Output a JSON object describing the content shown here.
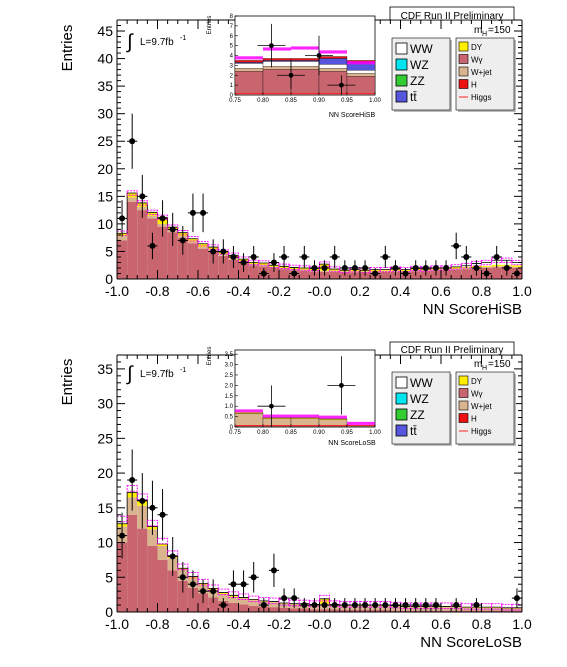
{
  "figure": {
    "experiment_label": "CDF Run II Preliminary",
    "mass_label": "m",
    "mass_subscript": "H",
    "mass_value": "=150",
    "luminosity_label": "L=9.7fb",
    "luminosity_exponent": "-1",
    "integral_symbol": "∫"
  },
  "legend": {
    "entries": [
      {
        "label": "WW",
        "color": "#ffffff",
        "style": "box"
      },
      {
        "label": "WZ",
        "color": "#00e5ee",
        "style": "box"
      },
      {
        "label": "ZZ",
        "color": "#33cc33",
        "style": "box"
      },
      {
        "label": "tt̄",
        "color": "#5555dd",
        "style": "box"
      },
      {
        "label": "DY",
        "color": "#ffee00",
        "style": "box"
      },
      {
        "label": "Wγ",
        "color": "#c8656e",
        "style": "box"
      },
      {
        "label": "W+jet",
        "color": "#d9b48f",
        "style": "box"
      },
      {
        "label": "H",
        "color": "#ee1111",
        "style": "box"
      },
      {
        "label": "Higgs",
        "color": "#ff2222",
        "style": "line"
      }
    ]
  },
  "colors": {
    "wgamma": "#c8656e",
    "wjet": "#d9b48f",
    "dy": "#ffee00",
    "ww": "#ffffff",
    "wz": "#00e5ee",
    "zz": "#33cc33",
    "ttbar": "#5555dd",
    "h": "#ee1111",
    "higgs_line": "#ff2222",
    "uncertainty": "#ff00ff",
    "data": "#000000"
  },
  "chart_data": [
    {
      "type": "histogram",
      "xlabel": "NN ScoreHiSB",
      "ylabel": "Entries",
      "xlim": [
        -1.0,
        1.0
      ],
      "ylim": [
        0,
        47
      ],
      "xticks": [
        -1.0,
        -0.8,
        -0.6,
        -0.4,
        -0.2,
        -0.0,
        0.2,
        0.4,
        0.6,
        0.8,
        1.0
      ],
      "xtick_labels": [
        "-1.0",
        "-0.8",
        "-0.6",
        "-0.4",
        "-0.2",
        "-0.0",
        "0.2",
        "0.4",
        "0.6",
        "0.8",
        "1.0"
      ],
      "yticks": [
        0,
        5,
        10,
        15,
        20,
        25,
        30,
        35,
        40,
        45
      ],
      "bin_width": 0.05,
      "bin_edges_start": -1.0,
      "stack": {
        "wgamma": [
          7,
          14,
          12.5,
          11,
          9.5,
          8.5,
          7.5,
          6.5,
          5.5,
          5,
          4.2,
          3.5,
          3,
          2.5,
          2.3,
          2,
          1.8,
          1.6,
          1.5,
          1.4,
          1.3,
          1.3,
          1.2,
          1.2,
          1.2,
          1.2,
          1.3,
          1.3,
          1.3,
          1.4,
          1.4,
          1.5,
          1.6,
          1.7,
          1.8,
          1.9,
          2.0,
          2.1,
          2.2,
          2.0
        ],
        "wjet": [
          0.8,
          0.8,
          0.6,
          0.5,
          0.5,
          0.4,
          0.3,
          0.3,
          0.3,
          0.3,
          0.3,
          0.3,
          0.2,
          0.2,
          0.2,
          0.2,
          0.2,
          0.2,
          0.2,
          0.2,
          0.2,
          0.2,
          0.2,
          0.2,
          0.2,
          0.2,
          0.2,
          0.2,
          0.2,
          0.2,
          0.2,
          0.2,
          0.2,
          0.2,
          0.2,
          0.2,
          0.2,
          0.2,
          0.2,
          0.2
        ],
        "dy": [
          0.5,
          0.8,
          0.7,
          0.6,
          1.2,
          0.5,
          0.6,
          0.5,
          0.6,
          0.5,
          0.4,
          0.5,
          0.4,
          0.3,
          0.4,
          0.3,
          0.3,
          0.3,
          0.3,
          0.3,
          1.2,
          0.3,
          0.2,
          0.3,
          0.2,
          0.3,
          0.2,
          0.3,
          0.2,
          0.3,
          0.2,
          0.3,
          0.2,
          0.3,
          0.2,
          0.3,
          0.2,
          0.3,
          0.2,
          0.3
        ],
        "ww": [
          0,
          0,
          0,
          0,
          0,
          0,
          0,
          0,
          0,
          0,
          0,
          0,
          0,
          0,
          0,
          0,
          0,
          0,
          0,
          0,
          0,
          0,
          0,
          0,
          0,
          0,
          0,
          0,
          0,
          0,
          0,
          0,
          0,
          0,
          0.2,
          0.4,
          0.6,
          0.8,
          0.8,
          0.5
        ]
      },
      "uncertainty_total": [
        8.3,
        15.6,
        13.8,
        12.1,
        11.2,
        9.4,
        8.4,
        7.3,
        6.4,
        5.8,
        4.9,
        4.3,
        3.6,
        3.0,
        2.9,
        2.5,
        2.3,
        2.1,
        2.0,
        1.9,
        2.7,
        1.8,
        1.6,
        1.7,
        1.6,
        1.7,
        1.7,
        1.8,
        1.7,
        1.9,
        1.8,
        2.0,
        2.0,
        2.2,
        2.4,
        2.8,
        3.0,
        3.4,
        3.4,
        3.0
      ],
      "data_points": [
        {
          "x": -0.975,
          "y": 11,
          "err": 3.3
        },
        {
          "x": -0.925,
          "y": 25,
          "err": 5.0
        },
        {
          "x": -0.875,
          "y": 15,
          "err": 3.9
        },
        {
          "x": -0.825,
          "y": 6,
          "err": 2.4
        },
        {
          "x": -0.775,
          "y": 11,
          "err": 3.3
        },
        {
          "x": -0.725,
          "y": 9,
          "err": 3.0
        },
        {
          "x": -0.675,
          "y": 7,
          "err": 2.6
        },
        {
          "x": -0.625,
          "y": 12,
          "err": 3.5
        },
        {
          "x": -0.575,
          "y": 12,
          "err": 3.5
        },
        {
          "x": -0.525,
          "y": 5,
          "err": 2.2
        },
        {
          "x": -0.475,
          "y": 5,
          "err": 2.2
        },
        {
          "x": -0.425,
          "y": 4,
          "err": 2.0
        },
        {
          "x": -0.375,
          "y": 3,
          "err": 1.7
        },
        {
          "x": -0.325,
          "y": 4,
          "err": 2.0
        },
        {
          "x": -0.275,
          "y": 1,
          "err": 1.0
        },
        {
          "x": -0.225,
          "y": 3,
          "err": 1.7
        },
        {
          "x": -0.175,
          "y": 4,
          "err": 2.0
        },
        {
          "x": -0.125,
          "y": 1,
          "err": 1.0
        },
        {
          "x": -0.075,
          "y": 4,
          "err": 2.0
        },
        {
          "x": -0.025,
          "y": 2,
          "err": 1.4
        },
        {
          "x": 0.025,
          "y": 2,
          "err": 1.4
        },
        {
          "x": 0.075,
          "y": 4,
          "err": 2.0
        },
        {
          "x": 0.125,
          "y": 2,
          "err": 1.4
        },
        {
          "x": 0.175,
          "y": 2,
          "err": 1.4
        },
        {
          "x": 0.225,
          "y": 2,
          "err": 1.4
        },
        {
          "x": 0.275,
          "y": 1,
          "err": 1.0
        },
        {
          "x": 0.325,
          "y": 4,
          "err": 2.0
        },
        {
          "x": 0.375,
          "y": 2,
          "err": 1.4
        },
        {
          "x": 0.425,
          "y": 1,
          "err": 1.0
        },
        {
          "x": 0.475,
          "y": 2,
          "err": 1.4
        },
        {
          "x": 0.525,
          "y": 2,
          "err": 1.4
        },
        {
          "x": 0.575,
          "y": 2,
          "err": 1.4
        },
        {
          "x": 0.625,
          "y": 2,
          "err": 1.4
        },
        {
          "x": 0.675,
          "y": 6,
          "err": 2.4
        },
        {
          "x": 0.725,
          "y": 4,
          "err": 2.0
        },
        {
          "x": 0.775,
          "y": 2,
          "err": 1.4
        },
        {
          "x": 0.825,
          "y": 1,
          "err": 1.0
        },
        {
          "x": 0.875,
          "y": 4,
          "err": 2.0
        },
        {
          "x": 0.925,
          "y": 2,
          "err": 1.4
        },
        {
          "x": 0.975,
          "y": 1,
          "err": 1.0
        }
      ],
      "inset": {
        "xlabel": "NN ScoreHiSB",
        "ylabel": "Entries",
        "xlim": [
          0.75,
          1.0
        ],
        "ylim": [
          0,
          8
        ],
        "xticks": [
          0.75,
          0.8,
          0.85,
          0.9,
          0.95,
          1.0
        ],
        "xtick_labels": [
          "0.75",
          "0.80",
          "0.85",
          "0.90",
          "0.95",
          "1.00"
        ],
        "yticks": [
          0,
          1,
          2,
          3,
          4,
          5,
          6,
          7,
          8
        ],
        "ytick_labels": [
          "0",
          "1",
          "2",
          "3",
          "4",
          "5",
          "6",
          "7",
          "8"
        ],
        "bins": [
          0.775,
          0.825,
          0.875,
          0.925,
          0.975
        ],
        "bin_width": 0.05,
        "stack": {
          "wgamma": [
            2.4,
            2.6,
            2.6,
            2.4,
            1.9
          ],
          "wjet": [
            0.3,
            0.3,
            0.3,
            0.3,
            0.3
          ],
          "ww": [
            0.5,
            0.5,
            0.5,
            0.4,
            0.3
          ],
          "ttbar": [
            0.1,
            0.1,
            0.1,
            0.6,
            0.8
          ],
          "h": [
            0.2,
            0.2,
            0.2,
            0.2,
            0.2
          ]
        },
        "uncertainty_total": [
          3.6,
          4.5,
          4.6,
          4.2,
          3.1
        ],
        "data_points": [
          {
            "x": 0.815,
            "y": 5.0,
            "xerr": 0.025,
            "err": 2.2
          },
          {
            "x": 0.85,
            "y": 2.0,
            "xerr": 0.025,
            "err": 1.4
          },
          {
            "x": 0.9,
            "y": 4.0,
            "xerr": 0.025,
            "err": 2.0
          },
          {
            "x": 0.94,
            "y": 1.0,
            "xerr": 0.025,
            "err": 1.0
          }
        ]
      }
    },
    {
      "type": "histogram",
      "xlabel": "NN ScoreLoSB",
      "ylabel": "Entries",
      "xlim": [
        -1.0,
        1.0
      ],
      "ylim": [
        0,
        37
      ],
      "xticks": [
        -1.0,
        -0.8,
        -0.6,
        -0.4,
        -0.2,
        -0.0,
        0.2,
        0.4,
        0.6,
        0.8,
        1.0
      ],
      "xtick_labels": [
        "-1.0",
        "-0.8",
        "-0.6",
        "-0.4",
        "-0.2",
        "-0.0",
        "0.2",
        "0.4",
        "0.6",
        "0.8",
        "1.0"
      ],
      "yticks": [
        0,
        5,
        10,
        15,
        20,
        25,
        30,
        35
      ],
      "bin_width": 0.05,
      "bin_edges_start": -1.0,
      "stack": {
        "wgamma": [
          10,
          14,
          12,
          9.5,
          7.5,
          6,
          4.5,
          3.5,
          2.7,
          2.1,
          1.6,
          1.3,
          1.1,
          0.9,
          0.8,
          0.7,
          0.6,
          0.5,
          0.5,
          0.4,
          0.4,
          0.4,
          0.3,
          0.3,
          0.3,
          0.3,
          0.3,
          0.2,
          0.2,
          0.2,
          0.2,
          0.2,
          0.2,
          0.2,
          0.2,
          0.2,
          0.2,
          0.2,
          0.2,
          0.2
        ],
        "wjet": [
          2.3,
          2.5,
          3.3,
          2.4,
          2.0,
          1.8,
          1.6,
          1.3,
          1.2,
          1.1,
          1.0,
          0.9,
          0.9,
          0.8,
          0.7,
          0.7,
          0.6,
          0.6,
          0.6,
          0.6,
          0.8,
          0.6,
          0.6,
          0.6,
          0.6,
          0.6,
          0.6,
          0.6,
          0.5,
          0.5,
          0.5,
          0.5,
          0.5,
          0.5,
          0.4,
          0.4,
          0.4,
          0.4,
          0.3,
          0.3
        ],
        "dy": [
          0.4,
          0.7,
          0.8,
          0.4,
          0.3,
          0.3,
          0.2,
          0.3,
          0.2,
          0.2,
          0.2,
          0.2,
          0.1,
          0.1,
          0.1,
          0.1,
          0.1,
          0.1,
          0.1,
          0.1,
          0.7,
          0.1,
          0.1,
          0.1,
          0.1,
          0.1,
          0.1,
          0.1,
          0.1,
          0.1,
          0.1,
          0.1,
          0.1,
          0.1,
          0.1,
          0.1,
          0.1,
          0.1,
          0.1,
          0.1
        ]
      },
      "uncertainty_total": [
        13.4,
        17.8,
        16.6,
        12.8,
        10.2,
        8.4,
        6.5,
        5.3,
        4.3,
        3.5,
        2.9,
        2.5,
        2.2,
        1.9,
        1.7,
        1.6,
        1.4,
        1.3,
        1.3,
        1.2,
        2.0,
        1.2,
        1.1,
        1.1,
        1.1,
        1.1,
        1.1,
        1.0,
        0.9,
        0.9,
        0.9,
        0.9,
        0.9,
        0.9,
        0.8,
        0.8,
        0.8,
        0.8,
        0.7,
        0.7
      ],
      "data_points": [
        {
          "x": -0.975,
          "y": 11,
          "err": 3.3
        },
        {
          "x": -0.925,
          "y": 19,
          "err": 4.4
        },
        {
          "x": -0.875,
          "y": 16,
          "err": 4.0
        },
        {
          "x": -0.825,
          "y": 15,
          "err": 3.9
        },
        {
          "x": -0.775,
          "y": 14,
          "err": 3.7
        },
        {
          "x": -0.725,
          "y": 8,
          "err": 2.8
        },
        {
          "x": -0.675,
          "y": 5,
          "err": 2.2
        },
        {
          "x": -0.625,
          "y": 4,
          "err": 2.0
        },
        {
          "x": -0.575,
          "y": 3,
          "err": 1.7
        },
        {
          "x": -0.525,
          "y": 3,
          "err": 1.7
        },
        {
          "x": -0.475,
          "y": 1,
          "err": 1.0
        },
        {
          "x": -0.425,
          "y": 4,
          "err": 2.0
        },
        {
          "x": -0.375,
          "y": 4,
          "err": 2.0
        },
        {
          "x": -0.325,
          "y": 5,
          "err": 2.2
        },
        {
          "x": -0.275,
          "y": 1,
          "err": 1.0
        },
        {
          "x": -0.225,
          "y": 6,
          "err": 2.4
        },
        {
          "x": -0.175,
          "y": 2,
          "err": 1.4
        },
        {
          "x": -0.125,
          "y": 2,
          "err": 1.4
        },
        {
          "x": -0.075,
          "y": 1,
          "err": 1.0
        },
        {
          "x": -0.025,
          "y": 1,
          "err": 1.0
        },
        {
          "x": 0.025,
          "y": 1,
          "err": 1.0
        },
        {
          "x": 0.075,
          "y": 1,
          "err": 1.0
        },
        {
          "x": 0.125,
          "y": 1,
          "err": 1.0
        },
        {
          "x": 0.175,
          "y": 1,
          "err": 1.0
        },
        {
          "x": 0.225,
          "y": 1,
          "err": 1.0
        },
        {
          "x": 0.275,
          "y": 1,
          "err": 1.0
        },
        {
          "x": 0.325,
          "y": 1,
          "err": 1.0
        },
        {
          "x": 0.375,
          "y": 1,
          "err": 1.0
        },
        {
          "x": 0.425,
          "y": 1,
          "err": 1.0
        },
        {
          "x": 0.475,
          "y": 1,
          "err": 1.0
        },
        {
          "x": 0.525,
          "y": 1,
          "err": 1.0
        },
        {
          "x": 0.575,
          "y": 1,
          "err": 1.0
        },
        {
          "x": 0.675,
          "y": 1,
          "err": 1.0
        },
        {
          "x": 0.775,
          "y": 1,
          "err": 1.0
        },
        {
          "x": 0.975,
          "y": 2,
          "err": 1.4
        }
      ],
      "inset": {
        "xlabel": "NN ScoreLoSB",
        "ylabel": "Entries",
        "xlim": [
          0.75,
          1.0
        ],
        "ylim": [
          0,
          3.7
        ],
        "xticks": [
          0.75,
          0.8,
          0.85,
          0.9,
          0.95,
          1.0
        ],
        "xtick_labels": [
          "0.75",
          "0.80",
          "0.85",
          "0.90",
          "0.95",
          "1.00"
        ],
        "yticks": [
          0,
          0.5,
          1.0,
          1.5,
          2.0,
          2.5,
          3.0,
          3.5
        ],
        "ytick_labels": [
          "0",
          "0.5",
          "1.0",
          "1.5",
          "2.0",
          "2.5",
          "3.0",
          "3.5"
        ],
        "bins": [
          0.775,
          0.825,
          0.875,
          0.925,
          0.975
        ],
        "bin_width": 0.05,
        "stack": {
          "wgamma": [
            0.05,
            0.05,
            0.05,
            0.05,
            0.02
          ],
          "wjet": [
            0.6,
            0.35,
            0.35,
            0.3,
            0.05
          ],
          "dy": [
            0.05,
            0.05,
            0.05,
            0.05,
            0.02
          ]
        },
        "uncertainty_total": [
          0.7,
          0.45,
          0.45,
          0.4,
          0.1
        ],
        "data_points": [
          {
            "x": 0.815,
            "y": 1.0,
            "xerr": 0.025,
            "err": 1.0
          },
          {
            "x": 0.94,
            "y": 2.0,
            "xerr": 0.025,
            "err": 1.4
          }
        ]
      }
    }
  ]
}
